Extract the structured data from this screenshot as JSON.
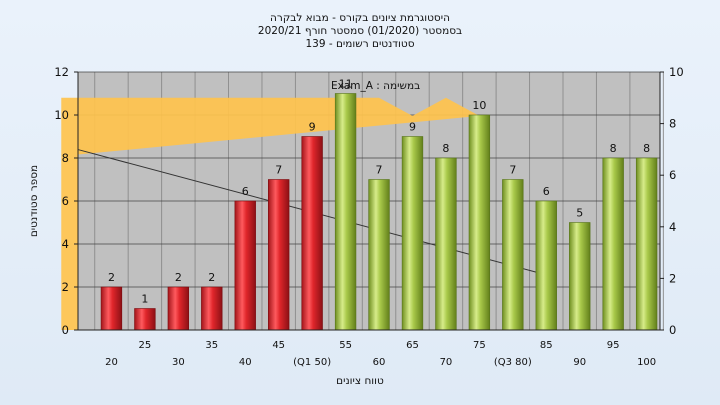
{
  "chart_data": {
    "type": "bar",
    "title_lines": [
      "היסטוגרמת ציונים בקורס - מבוא לבקרה",
      "בסמסטר  (01/2020)  סמסטר חורף 2020/21",
      "סטודנטים רשומים - 139"
    ],
    "xlabel": "טווח ציונים",
    "ylabel": "מספר סטודנטים",
    "ylim": [
      0,
      12
    ],
    "y_ticks": [
      0,
      2,
      4,
      6,
      8,
      10,
      12
    ],
    "y2lim": [
      0,
      10
    ],
    "y2_ticks": [
      0,
      2,
      4,
      6,
      8,
      10
    ],
    "annotation": "Exam_A : במשימה",
    "categories": [
      "20",
      "25",
      "30",
      "35",
      "40",
      "45",
      "(Q1 50)",
      "55",
      "60",
      "65",
      "70",
      "75",
      "(Q3 80)",
      "85",
      "90",
      "95",
      "100"
    ],
    "values": [
      2,
      1,
      2,
      2,
      6,
      7,
      9,
      11,
      7,
      9,
      8,
      10,
      7,
      6,
      5,
      8,
      8
    ],
    "bar_colors": [
      "red",
      "red",
      "red",
      "red",
      "red",
      "red",
      "red",
      "green",
      "green",
      "green",
      "green",
      "green",
      "green",
      "green",
      "green",
      "green",
      "green"
    ],
    "area_series": [
      {
        "x": "50",
        "y": 9.0
      },
      {
        "x": "55",
        "y": 9.0
      },
      {
        "x": "60",
        "y": 9.0
      },
      {
        "x": "65",
        "y": 8.3
      },
      {
        "x": "70",
        "y": 9.0
      },
      {
        "x": "75",
        "y": 8.3
      },
      {
        "x": "80",
        "y": 6.8
      }
    ],
    "grid": true,
    "colors": {
      "plot_bg": "#c0c0c0",
      "red_bar": "#e0262b",
      "green_bar": "#a9c94a",
      "area": "#ffc34d"
    }
  }
}
